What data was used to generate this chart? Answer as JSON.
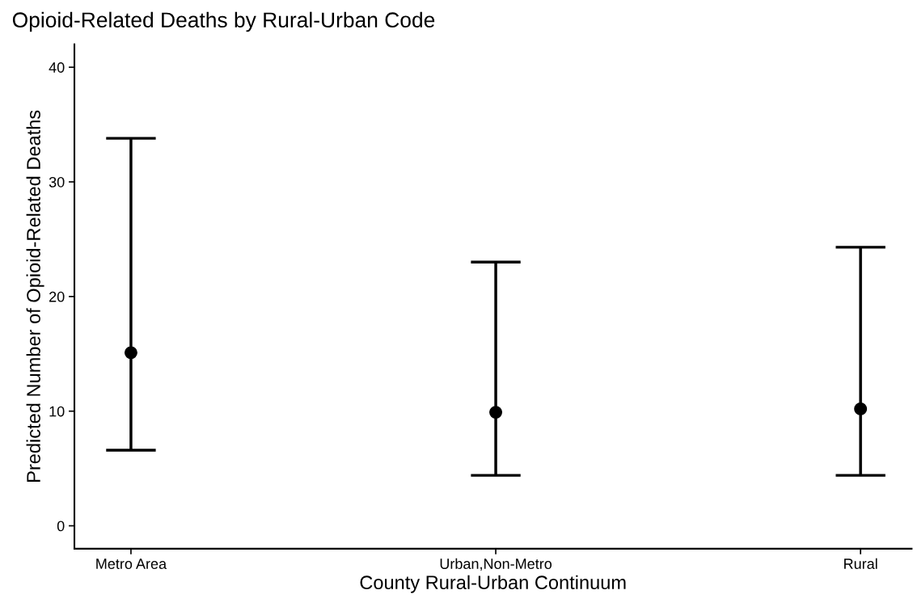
{
  "chart_data": {
    "type": "scatter",
    "title": "Opioid-Related Deaths by Rural-Urban Code",
    "xlabel": "County Rural-Urban Continuum",
    "ylabel": "Predicted Number of Opioid-Related Deaths",
    "categories": [
      "Metro Area",
      "Urban,Non-Metro",
      "Rural"
    ],
    "series": [
      {
        "color": "#000000",
        "values": [
          15.1,
          9.9,
          10.2
        ],
        "errors": [
          [
            6.6,
            33.8
          ],
          [
            4.4,
            23.0
          ],
          [
            4.4,
            24.3
          ]
        ]
      }
    ],
    "ylim": [
      -2,
      42
    ],
    "yticks": [
      0,
      10,
      20,
      30,
      40
    ],
    "grid": false,
    "legend": false,
    "marker": "circle"
  }
}
